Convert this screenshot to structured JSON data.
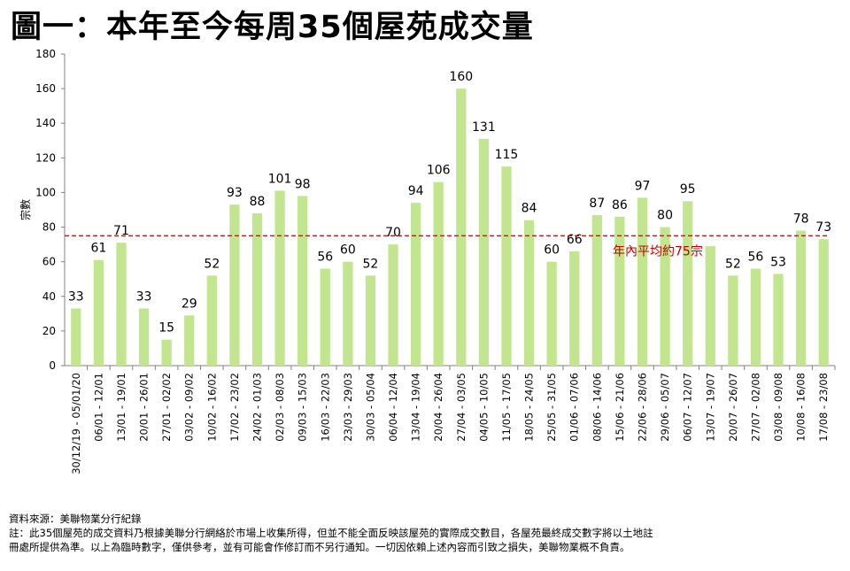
{
  "title": "圖一：本年至今每周35個屋苑成交量",
  "notes": {
    "source": "資料來源：美聯物業分行紀錄",
    "note_line1": "註：此35個屋苑的成交資料乃根據美聯分行網絡於市場上收集所得，但並不能全面反映該屋苑的實際成交數目，各屋苑最終成交數字將以土地註",
    "note_line2": "冊處所提供為準。以上為臨時數字，僅供參考，並有可能會作修訂而不另行通知。一切因依賴上述內容而引致之損失，美聯物業概不負責。"
  },
  "colors": {
    "bar": "#c2e68f",
    "average_line": "#b22222",
    "average_label": "#c00000",
    "axis": "#808080"
  },
  "chart_data": {
    "type": "bar",
    "title": "圖一：本年至今每周35個屋苑成交量",
    "ylabel": "宗數",
    "xlabel": "",
    "ylim": [
      0,
      180
    ],
    "yticks": [
      0,
      20,
      40,
      60,
      80,
      100,
      120,
      140,
      160,
      180
    ],
    "grid": false,
    "categories": [
      "30/12/19 - 05/01/20",
      "06/01 - 12/01",
      "13/01 - 19/01",
      "20/01 - 26/01",
      "27/01 - 02/02",
      "03/02 - 09/02",
      "10/02 - 16/02",
      "17/02 - 23/02",
      "24/02 - 01/03",
      "02/03 - 08/03",
      "09/03 - 15/03",
      "16/03 - 22/03",
      "23/03 - 29/03",
      "30/03 - 05/04",
      "06/04 - 12/04",
      "13/04 - 19/04",
      "20/04 - 26/04",
      "27/04 - 03/05",
      "04/05 - 10/05",
      "11/05 - 17/05",
      "18/05 - 24/05",
      "25/05 - 31/05",
      "01/06 - 07/06",
      "08/06 - 14/06",
      "15/06 - 21/06",
      "22/06 - 28/06",
      "29/06 - 05/07",
      "06/07 - 12/07",
      "13/07 - 19/07",
      "20/07 - 26/07",
      "27/07 - 02/08",
      "03/08 - 09/08",
      "10/08 - 16/08",
      "17/08 - 23/08"
    ],
    "values": [
      33,
      61,
      71,
      33,
      15,
      29,
      52,
      93,
      88,
      101,
      98,
      56,
      60,
      52,
      70,
      94,
      106,
      160,
      131,
      115,
      84,
      60,
      66,
      87,
      86,
      97,
      80,
      95,
      69,
      52,
      56,
      53,
      78,
      73
    ],
    "data_labels": [
      "33",
      "61",
      "71",
      "33",
      "15",
      "29",
      "52",
      "93",
      "88",
      "101",
      "98",
      "56",
      "60",
      "52",
      "70",
      "94",
      "106",
      "160",
      "131",
      "115",
      "84",
      "60",
      "66",
      "87",
      "86",
      "97",
      "80",
      "95",
      "",
      "52",
      "56",
      "53",
      "78",
      "73"
    ],
    "average": {
      "value": 75,
      "label": "年內平均約75宗"
    }
  }
}
